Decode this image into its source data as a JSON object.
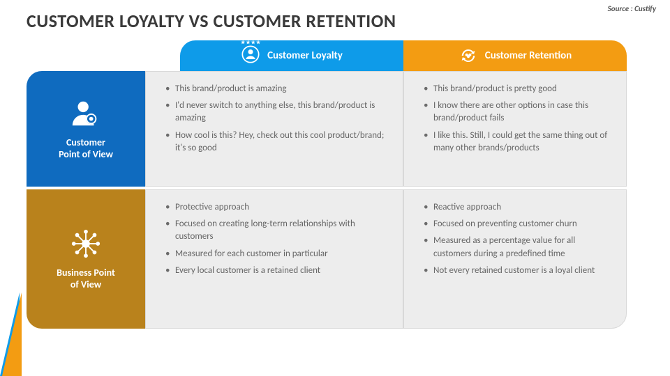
{
  "title": "CUSTOMER LOYALTY VS CUSTOMER RETENTION",
  "source": "Source : Custify",
  "colors": {
    "loyalty_header": "#0e9be9",
    "retention_header": "#f39c12",
    "customer_row": "#0f6bbf",
    "business_row": "#b9821c",
    "cell_bg": "#ededed",
    "cell_text": "#666666",
    "title_color": "#3a3a3a"
  },
  "columns": {
    "loyalty": {
      "label": "Customer Loyalty",
      "icon": "loyalty-icon"
    },
    "retention": {
      "label": "Customer Retention",
      "icon": "retention-icon"
    }
  },
  "rows": {
    "customer": {
      "label_line1": "Customer",
      "label_line2": "Point of View",
      "icon": "customer-pov-icon"
    },
    "business": {
      "label_line1": "Business Point",
      "label_line2": "of View",
      "icon": "business-pov-icon"
    }
  },
  "cells": {
    "c11": [
      "This brand/product is amazing",
      "I'd never switch to anything else, this brand/product is amazing",
      "How cool is this? Hey, check out this cool product/brand; it's so good"
    ],
    "c12": [
      "This brand/product is pretty good",
      "I know there are other options in case this brand/product fails",
      "I like this. Still, I could get the same thing out of many other brands/products"
    ],
    "c21": [
      "Protective approach",
      "Focused on creating long-term relationships with customers",
      "Measured for each customer in particular",
      "Every local customer is a retained client"
    ],
    "c22": [
      "Reactive approach",
      "Focused on preventing customer churn",
      "Measured as a percentage value for all customers during a predefined time",
      "Not every retained customer is a loyal client"
    ]
  }
}
